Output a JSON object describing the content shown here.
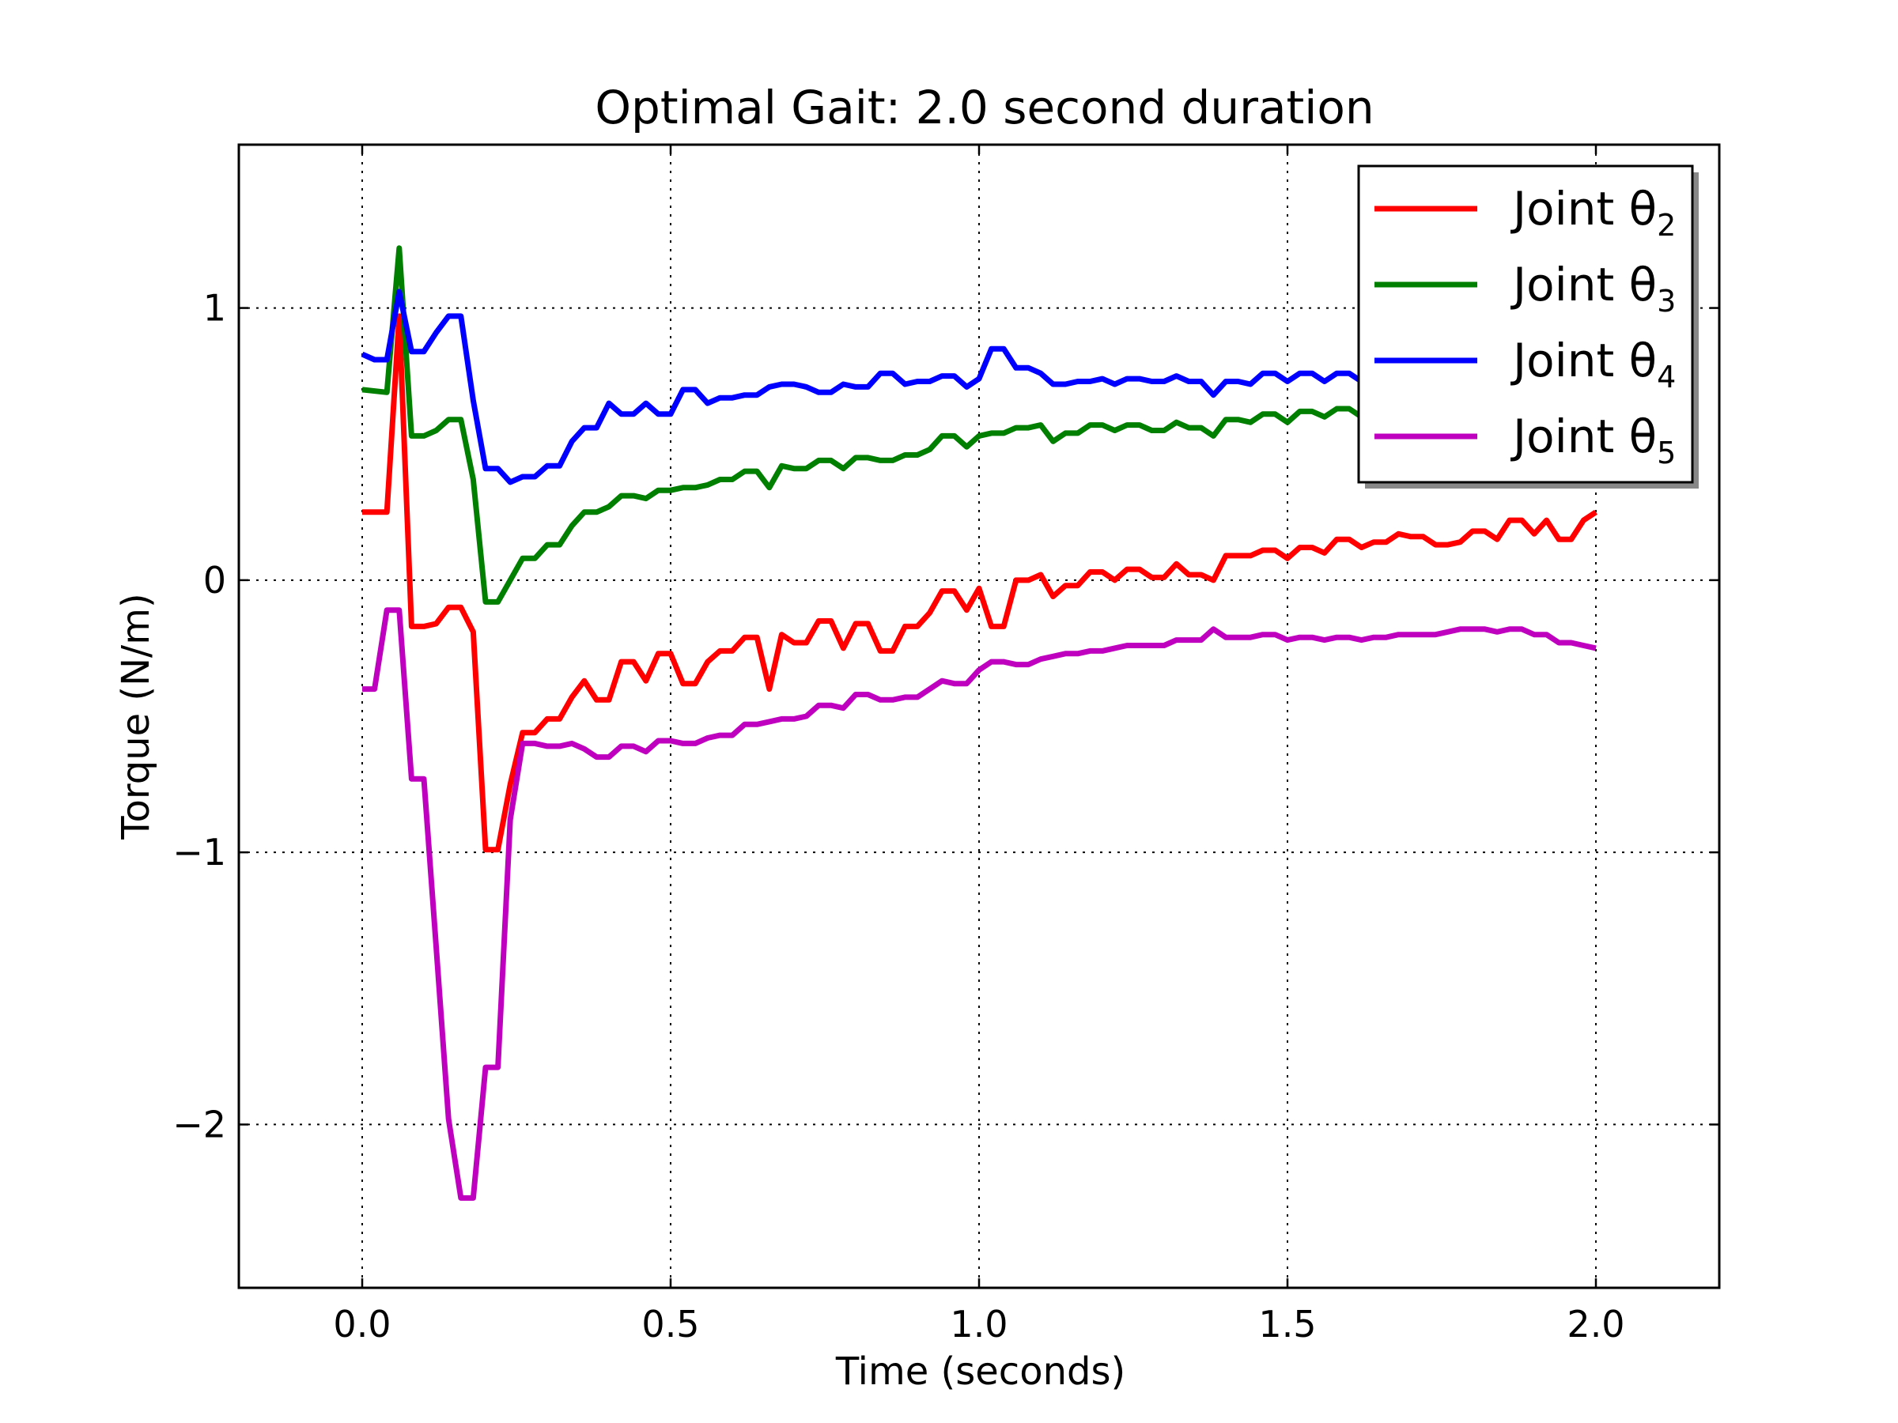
{
  "chart_data": {
    "type": "line",
    "title": "Optimal Gait: 2.0 second duration",
    "xlabel": "Time (seconds)",
    "ylabel": "Torque (N/m)",
    "xlim": [
      -0.2,
      2.2
    ],
    "ylim": [
      -2.6,
      1.6
    ],
    "xticks": [
      {
        "value": 0.0,
        "label": "0.0"
      },
      {
        "value": 0.5,
        "label": "0.5"
      },
      {
        "value": 1.0,
        "label": "1.0"
      },
      {
        "value": 1.5,
        "label": "1.5"
      },
      {
        "value": 2.0,
        "label": "2.0"
      }
    ],
    "yticks": [
      {
        "value": 1,
        "label": "1"
      },
      {
        "value": 0,
        "label": "0"
      },
      {
        "value": -1,
        "label": "−1"
      },
      {
        "value": -2,
        "label": "−2"
      }
    ],
    "grid": true,
    "legend_position": "top-right",
    "series": [
      {
        "name": "Joint θ₂",
        "legend_base": "Joint θ",
        "legend_sub": "2",
        "color": "#ff0000",
        "x": [
          0.0,
          0.04,
          0.06,
          0.08,
          0.1,
          0.12,
          0.14,
          0.16,
          0.18,
          0.2,
          0.22,
          0.24,
          0.26,
          0.28,
          0.3,
          0.32,
          0.34,
          0.36,
          0.38,
          0.4,
          0.42,
          0.44,
          0.46,
          0.48,
          0.5,
          0.52,
          0.54,
          0.56,
          0.58,
          0.6,
          0.62,
          0.64,
          0.66,
          0.68,
          0.7,
          0.72,
          0.74,
          0.76,
          0.78,
          0.8,
          0.82,
          0.84,
          0.86,
          0.88,
          0.9,
          0.92,
          0.94,
          0.96,
          0.98,
          1.0,
          1.02,
          1.04,
          1.06,
          1.08,
          1.1,
          1.12,
          1.14,
          1.16,
          1.18,
          1.2,
          1.22,
          1.24,
          1.26,
          1.28,
          1.3,
          1.32,
          1.34,
          1.36,
          1.38,
          1.4,
          1.42,
          1.44,
          1.46,
          1.48,
          1.5,
          1.52,
          1.54,
          1.56,
          1.58,
          1.6,
          1.62,
          1.64,
          1.66,
          1.68,
          1.7,
          1.72,
          1.74,
          1.76,
          1.78,
          1.8,
          1.82,
          1.84,
          1.86,
          1.88,
          1.9,
          1.92,
          1.94,
          1.96,
          1.98,
          2.0
        ],
        "y": [
          0.25,
          0.25,
          0.97,
          -0.17,
          -0.17,
          -0.16,
          -0.1,
          -0.1,
          -0.19,
          -0.99,
          -0.99,
          -0.75,
          -0.56,
          -0.56,
          -0.51,
          -0.51,
          -0.43,
          -0.37,
          -0.44,
          -0.44,
          -0.3,
          -0.3,
          -0.37,
          -0.27,
          -0.27,
          -0.38,
          -0.38,
          -0.3,
          -0.26,
          -0.26,
          -0.21,
          -0.21,
          -0.4,
          -0.2,
          -0.23,
          -0.23,
          -0.15,
          -0.15,
          -0.25,
          -0.16,
          -0.16,
          -0.26,
          -0.26,
          -0.17,
          -0.17,
          -0.12,
          -0.04,
          -0.04,
          -0.11,
          -0.03,
          -0.17,
          -0.17,
          0.0,
          0.0,
          0.02,
          -0.06,
          -0.02,
          -0.02,
          0.03,
          0.03,
          0.0,
          0.04,
          0.04,
          0.01,
          0.01,
          0.06,
          0.02,
          0.02,
          0.0,
          0.09,
          0.09,
          0.09,
          0.11,
          0.11,
          0.08,
          0.12,
          0.12,
          0.1,
          0.15,
          0.15,
          0.12,
          0.14,
          0.14,
          0.17,
          0.16,
          0.16,
          0.13,
          0.13,
          0.14,
          0.18,
          0.18,
          0.15,
          0.22,
          0.22,
          0.17,
          0.22,
          0.15,
          0.15,
          0.22,
          0.25
        ]
      },
      {
        "name": "Joint θ₃",
        "legend_base": "Joint θ",
        "legend_sub": "3",
        "color": "#007f00",
        "x": [
          0.0,
          0.04,
          0.06,
          0.08,
          0.1,
          0.12,
          0.14,
          0.16,
          0.18,
          0.2,
          0.22,
          0.24,
          0.26,
          0.28,
          0.3,
          0.32,
          0.34,
          0.36,
          0.38,
          0.4,
          0.42,
          0.44,
          0.46,
          0.48,
          0.5,
          0.52,
          0.54,
          0.56,
          0.58,
          0.6,
          0.62,
          0.64,
          0.66,
          0.68,
          0.7,
          0.72,
          0.74,
          0.76,
          0.78,
          0.8,
          0.82,
          0.84,
          0.86,
          0.88,
          0.9,
          0.92,
          0.94,
          0.96,
          0.98,
          1.0,
          1.02,
          1.04,
          1.06,
          1.08,
          1.1,
          1.12,
          1.14,
          1.16,
          1.18,
          1.2,
          1.22,
          1.24,
          1.26,
          1.28,
          1.3,
          1.32,
          1.34,
          1.36,
          1.38,
          1.4,
          1.42,
          1.44,
          1.46,
          1.48,
          1.5,
          1.52,
          1.54,
          1.56,
          1.58,
          1.6,
          1.62
        ],
        "y": [
          0.7,
          0.69,
          1.22,
          0.53,
          0.53,
          0.55,
          0.59,
          0.59,
          0.37,
          -0.08,
          -0.08,
          0.0,
          0.08,
          0.08,
          0.13,
          0.13,
          0.2,
          0.25,
          0.25,
          0.27,
          0.31,
          0.31,
          0.3,
          0.33,
          0.33,
          0.34,
          0.34,
          0.35,
          0.37,
          0.37,
          0.4,
          0.4,
          0.34,
          0.42,
          0.41,
          0.41,
          0.44,
          0.44,
          0.41,
          0.45,
          0.45,
          0.44,
          0.44,
          0.46,
          0.46,
          0.48,
          0.53,
          0.53,
          0.49,
          0.53,
          0.54,
          0.54,
          0.56,
          0.56,
          0.57,
          0.51,
          0.54,
          0.54,
          0.57,
          0.57,
          0.55,
          0.57,
          0.57,
          0.55,
          0.55,
          0.58,
          0.56,
          0.56,
          0.53,
          0.59,
          0.59,
          0.58,
          0.61,
          0.61,
          0.58,
          0.62,
          0.62,
          0.6,
          0.63,
          0.63,
          0.6
        ]
      },
      {
        "name": "Joint θ₄",
        "legend_base": "Joint θ",
        "legend_sub": "4",
        "color": "#0000ff",
        "x": [
          0.0,
          0.02,
          0.04,
          0.06,
          0.08,
          0.1,
          0.12,
          0.14,
          0.16,
          0.18,
          0.2,
          0.22,
          0.24,
          0.26,
          0.28,
          0.3,
          0.32,
          0.34,
          0.36,
          0.38,
          0.4,
          0.42,
          0.44,
          0.46,
          0.48,
          0.5,
          0.52,
          0.54,
          0.56,
          0.58,
          0.6,
          0.62,
          0.64,
          0.66,
          0.68,
          0.7,
          0.72,
          0.74,
          0.76,
          0.78,
          0.8,
          0.82,
          0.84,
          0.86,
          0.88,
          0.9,
          0.92,
          0.94,
          0.96,
          0.98,
          1.0,
          1.02,
          1.04,
          1.06,
          1.08,
          1.1,
          1.12,
          1.14,
          1.16,
          1.18,
          1.2,
          1.22,
          1.24,
          1.26,
          1.28,
          1.3,
          1.32,
          1.34,
          1.36,
          1.38,
          1.4,
          1.42,
          1.44,
          1.46,
          1.48,
          1.5,
          1.52,
          1.54,
          1.56,
          1.58,
          1.6,
          1.62
        ],
        "y": [
          0.83,
          0.81,
          0.81,
          1.06,
          0.84,
          0.84,
          0.91,
          0.97,
          0.97,
          0.66,
          0.41,
          0.41,
          0.36,
          0.38,
          0.38,
          0.42,
          0.42,
          0.51,
          0.56,
          0.56,
          0.65,
          0.61,
          0.61,
          0.65,
          0.61,
          0.61,
          0.7,
          0.7,
          0.65,
          0.67,
          0.67,
          0.68,
          0.68,
          0.71,
          0.72,
          0.72,
          0.71,
          0.69,
          0.69,
          0.72,
          0.71,
          0.71,
          0.76,
          0.76,
          0.72,
          0.73,
          0.73,
          0.75,
          0.75,
          0.71,
          0.74,
          0.85,
          0.85,
          0.78,
          0.78,
          0.76,
          0.72,
          0.72,
          0.73,
          0.73,
          0.74,
          0.72,
          0.74,
          0.74,
          0.73,
          0.73,
          0.75,
          0.73,
          0.73,
          0.68,
          0.73,
          0.73,
          0.72,
          0.76,
          0.76,
          0.73,
          0.76,
          0.76,
          0.73,
          0.76,
          0.76,
          0.73
        ]
      },
      {
        "name": "Joint θ₅",
        "legend_base": "Joint θ",
        "legend_sub": "5",
        "color": "#bf00bf",
        "x": [
          0.0,
          0.02,
          0.04,
          0.06,
          0.08,
          0.1,
          0.12,
          0.14,
          0.16,
          0.18,
          0.2,
          0.22,
          0.24,
          0.26,
          0.28,
          0.3,
          0.32,
          0.34,
          0.36,
          0.38,
          0.4,
          0.42,
          0.44,
          0.46,
          0.48,
          0.5,
          0.52,
          0.54,
          0.56,
          0.58,
          0.6,
          0.62,
          0.64,
          0.66,
          0.68,
          0.7,
          0.72,
          0.74,
          0.76,
          0.78,
          0.8,
          0.82,
          0.84,
          0.86,
          0.88,
          0.9,
          0.92,
          0.94,
          0.96,
          0.98,
          1.0,
          1.02,
          1.04,
          1.06,
          1.08,
          1.1,
          1.12,
          1.14,
          1.16,
          1.18,
          1.2,
          1.22,
          1.24,
          1.26,
          1.28,
          1.3,
          1.32,
          1.34,
          1.36,
          1.38,
          1.4,
          1.42,
          1.44,
          1.46,
          1.48,
          1.5,
          1.52,
          1.54,
          1.56,
          1.58,
          1.6,
          1.62,
          1.64,
          1.66,
          1.68,
          1.7,
          1.72,
          1.74,
          1.76,
          1.78,
          1.8,
          1.82,
          1.84,
          1.86,
          1.88,
          1.9,
          1.92,
          1.94,
          1.96,
          1.98,
          2.0
        ],
        "y": [
          -0.4,
          -0.4,
          -0.11,
          -0.11,
          -0.73,
          -0.73,
          -1.35,
          -1.98,
          -2.27,
          -2.27,
          -1.79,
          -1.79,
          -0.88,
          -0.6,
          -0.6,
          -0.61,
          -0.61,
          -0.6,
          -0.62,
          -0.65,
          -0.65,
          -0.61,
          -0.61,
          -0.63,
          -0.59,
          -0.59,
          -0.6,
          -0.6,
          -0.58,
          -0.57,
          -0.57,
          -0.53,
          -0.53,
          -0.52,
          -0.51,
          -0.51,
          -0.5,
          -0.46,
          -0.46,
          -0.47,
          -0.42,
          -0.42,
          -0.44,
          -0.44,
          -0.43,
          -0.43,
          -0.4,
          -0.37,
          -0.38,
          -0.38,
          -0.33,
          -0.3,
          -0.3,
          -0.31,
          -0.31,
          -0.29,
          -0.28,
          -0.27,
          -0.27,
          -0.26,
          -0.26,
          -0.25,
          -0.24,
          -0.24,
          -0.24,
          -0.24,
          -0.22,
          -0.22,
          -0.22,
          -0.18,
          -0.21,
          -0.21,
          -0.21,
          -0.2,
          -0.2,
          -0.22,
          -0.21,
          -0.21,
          -0.22,
          -0.21,
          -0.21,
          -0.22,
          -0.21,
          -0.21,
          -0.2,
          -0.2,
          -0.2,
          -0.2,
          -0.19,
          -0.18,
          -0.18,
          -0.18,
          -0.19,
          -0.18,
          -0.18,
          -0.2,
          -0.2,
          -0.23,
          -0.23,
          -0.24,
          -0.25
        ]
      }
    ]
  }
}
